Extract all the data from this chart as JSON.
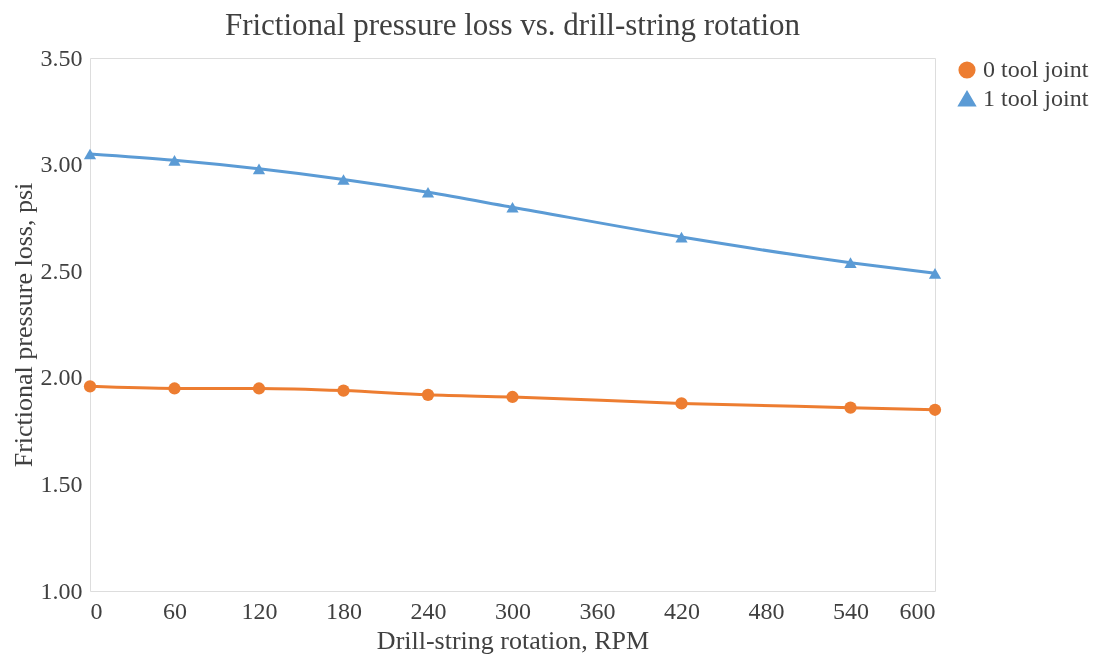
{
  "chart_data": {
    "type": "line",
    "title": "Frictional pressure loss vs. drill-string rotation",
    "xlabel": "Drill-string rotation, RPM",
    "ylabel": "Frictional pressure loss, psi",
    "x": [
      0,
      60,
      120,
      180,
      240,
      300,
      420,
      540,
      600
    ],
    "series": [
      {
        "name": "0 tool joint",
        "color": "#ed7d31",
        "marker": "circle",
        "values": [
          1.96,
          1.95,
          1.95,
          1.94,
          1.92,
          1.91,
          1.88,
          1.86,
          1.85
        ]
      },
      {
        "name": "1 tool joint",
        "color": "#5b9bd5",
        "marker": "triangle",
        "values": [
          3.05,
          3.02,
          2.98,
          2.93,
          2.87,
          2.8,
          2.66,
          2.54,
          2.49
        ]
      }
    ],
    "xlim": [
      0,
      600
    ],
    "xticks": [
      0,
      60,
      120,
      180,
      240,
      300,
      360,
      420,
      480,
      540,
      600
    ],
    "ylim": [
      1.0,
      3.5
    ],
    "yticks": [
      {
        "value": 1.0,
        "label": "1.00"
      },
      {
        "value": 1.5,
        "label": "1.50"
      },
      {
        "value": 2.0,
        "label": "2.00"
      },
      {
        "value": 2.5,
        "label": "2.50"
      },
      {
        "value": 3.0,
        "label": "3.00"
      },
      {
        "value": 3.5,
        "label": "3.50"
      }
    ],
    "grid": false,
    "legend": "right",
    "line_style": "solid"
  }
}
